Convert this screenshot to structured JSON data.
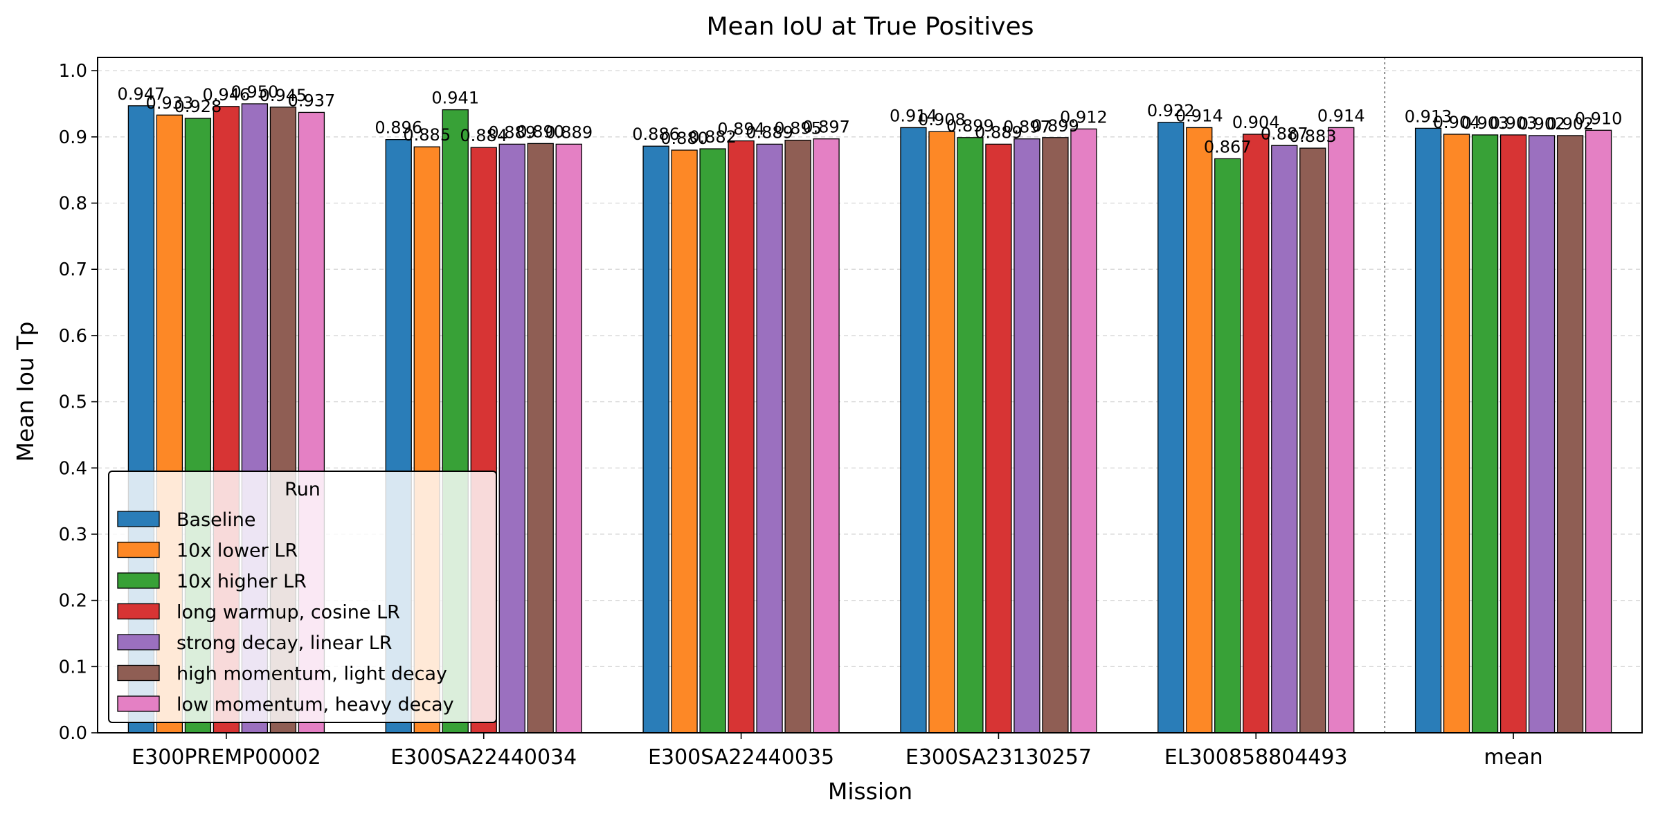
{
  "chart_data": {
    "type": "bar",
    "title": "Mean IoU at True Positives",
    "xlabel": "Mission",
    "ylabel": "Mean Iou Tp",
    "ylim": [
      0,
      1.02
    ],
    "yticks": [
      "0.0",
      "0.1",
      "0.2",
      "0.3",
      "0.4",
      "0.5",
      "0.6",
      "0.7",
      "0.8",
      "0.9",
      "1.0"
    ],
    "grid": "y-dashed",
    "categories": [
      "E300PREMP00002",
      "E300SA22440034",
      "E300SA22440035",
      "E300SA23130257",
      "EL300858804493",
      "mean"
    ],
    "separator_before_category": "mean",
    "legend": {
      "title": "Run",
      "placement": "lower-left"
    },
    "series": [
      {
        "name": "Baseline",
        "color": "#2a7db8",
        "values": [
          0.947,
          0.896,
          0.886,
          0.914,
          0.922,
          0.913
        ],
        "labels": [
          "0.947",
          "0.896",
          "0.886",
          "0.914",
          "0.922",
          "0.913"
        ]
      },
      {
        "name": "10x lower LR",
        "color": "#fd8826",
        "values": [
          0.933,
          0.885,
          0.88,
          0.908,
          0.914,
          0.904
        ],
        "labels": [
          "0.933",
          "0.885",
          "0.880",
          "0.908",
          "0.914",
          "0.904"
        ]
      },
      {
        "name": "10x higher LR",
        "color": "#38a137",
        "values": [
          0.928,
          0.941,
          0.882,
          0.899,
          0.867,
          0.903
        ],
        "labels": [
          "0.928",
          "0.941",
          "0.882",
          "0.899",
          "0.867",
          "0.903"
        ]
      },
      {
        "name": "long warmup, cosine LR",
        "color": "#d73434",
        "values": [
          0.946,
          0.884,
          0.894,
          0.889,
          0.904,
          0.903
        ],
        "labels": [
          "0.946",
          "0.884",
          "0.894",
          "0.889",
          "0.904",
          "0.903"
        ]
      },
      {
        "name": "strong decay, linear LR",
        "color": "#9b70bf",
        "values": [
          0.95,
          0.889,
          0.889,
          0.897,
          0.887,
          0.902
        ],
        "labels": [
          "0.950",
          "0.889",
          "0.889",
          "0.897",
          "0.887",
          "0.902"
        ]
      },
      {
        "name": "high momentum, light decay",
        "color": "#8f5e54",
        "values": [
          0.945,
          0.89,
          0.895,
          0.899,
          0.883,
          0.902
        ],
        "labels": [
          "0.945",
          "0.890",
          "0.895",
          "0.899",
          "0.883",
          "0.902"
        ]
      },
      {
        "name": "low momentum, heavy decay",
        "color": "#e480c4",
        "values": [
          0.937,
          0.889,
          0.897,
          0.912,
          0.914,
          0.91
        ],
        "labels": [
          "0.937",
          "0.889",
          "0.897",
          "0.912",
          "0.914",
          "0.910"
        ]
      }
    ]
  }
}
